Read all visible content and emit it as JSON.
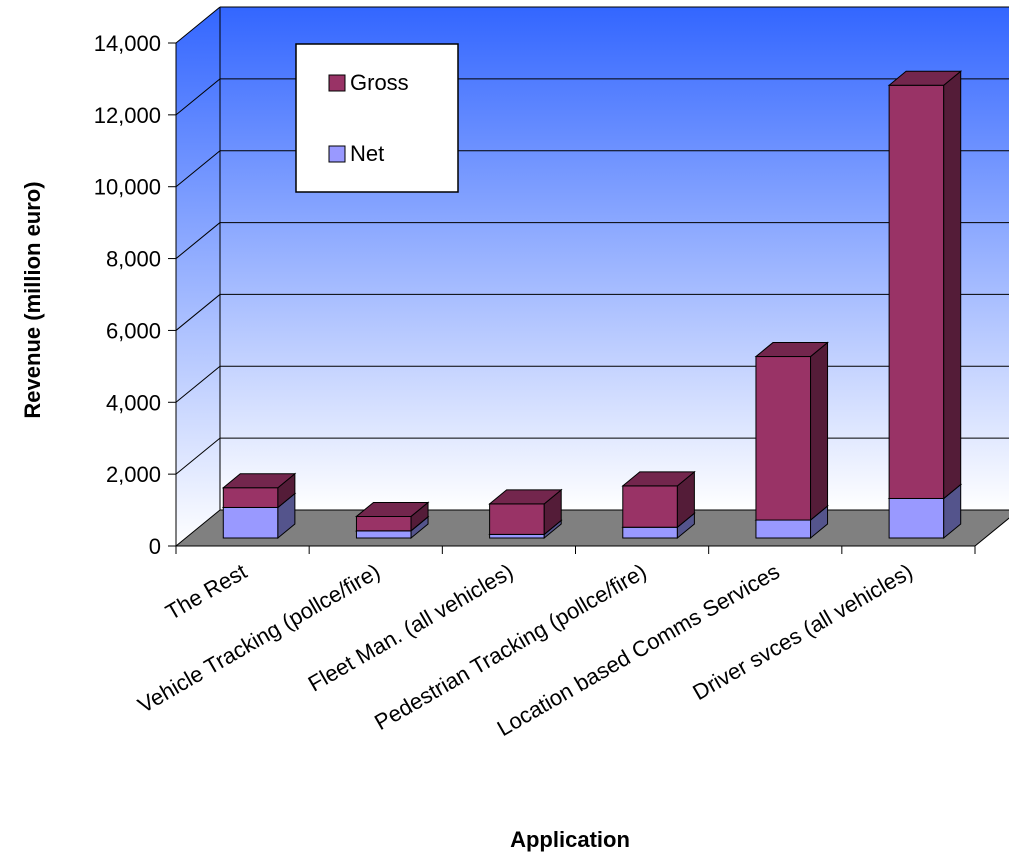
{
  "chart_data": {
    "type": "bar",
    "stacked": true,
    "three_d": true,
    "title": "",
    "xlabel": "Application",
    "ylabel": "Revenue (million euro)",
    "ylim": [
      0,
      14000
    ],
    "yticks": [
      0,
      2000,
      4000,
      6000,
      8000,
      10000,
      12000,
      14000
    ],
    "ytick_labels": [
      "0",
      "2,000",
      "4,000",
      "6,000",
      "8,000",
      "10,000",
      "12,000",
      "14,000"
    ],
    "grid": true,
    "legend_position": "top-left",
    "categories": [
      "The Rest",
      "Vehicle Tracking (pollce/fire)",
      "Fleet Man. (all vehicles)",
      "Pedestrian Tracking (pollce/fire)",
      "Location based Comms Services",
      "Driver svces (all vehicles)"
    ],
    "series": [
      {
        "name": "Net",
        "values": [
          850,
          200,
          100,
          300,
          500,
          1100
        ],
        "color": "#9999ff"
      },
      {
        "name": "Gross",
        "values": [
          550,
          400,
          850,
          1150,
          4550,
          11500
        ],
        "color": "#993366"
      }
    ],
    "legend_order": [
      "Gross",
      "Net"
    ],
    "background_gradient": [
      "#3366ff",
      "#ffffff"
    ],
    "floor_color": "#808080"
  }
}
